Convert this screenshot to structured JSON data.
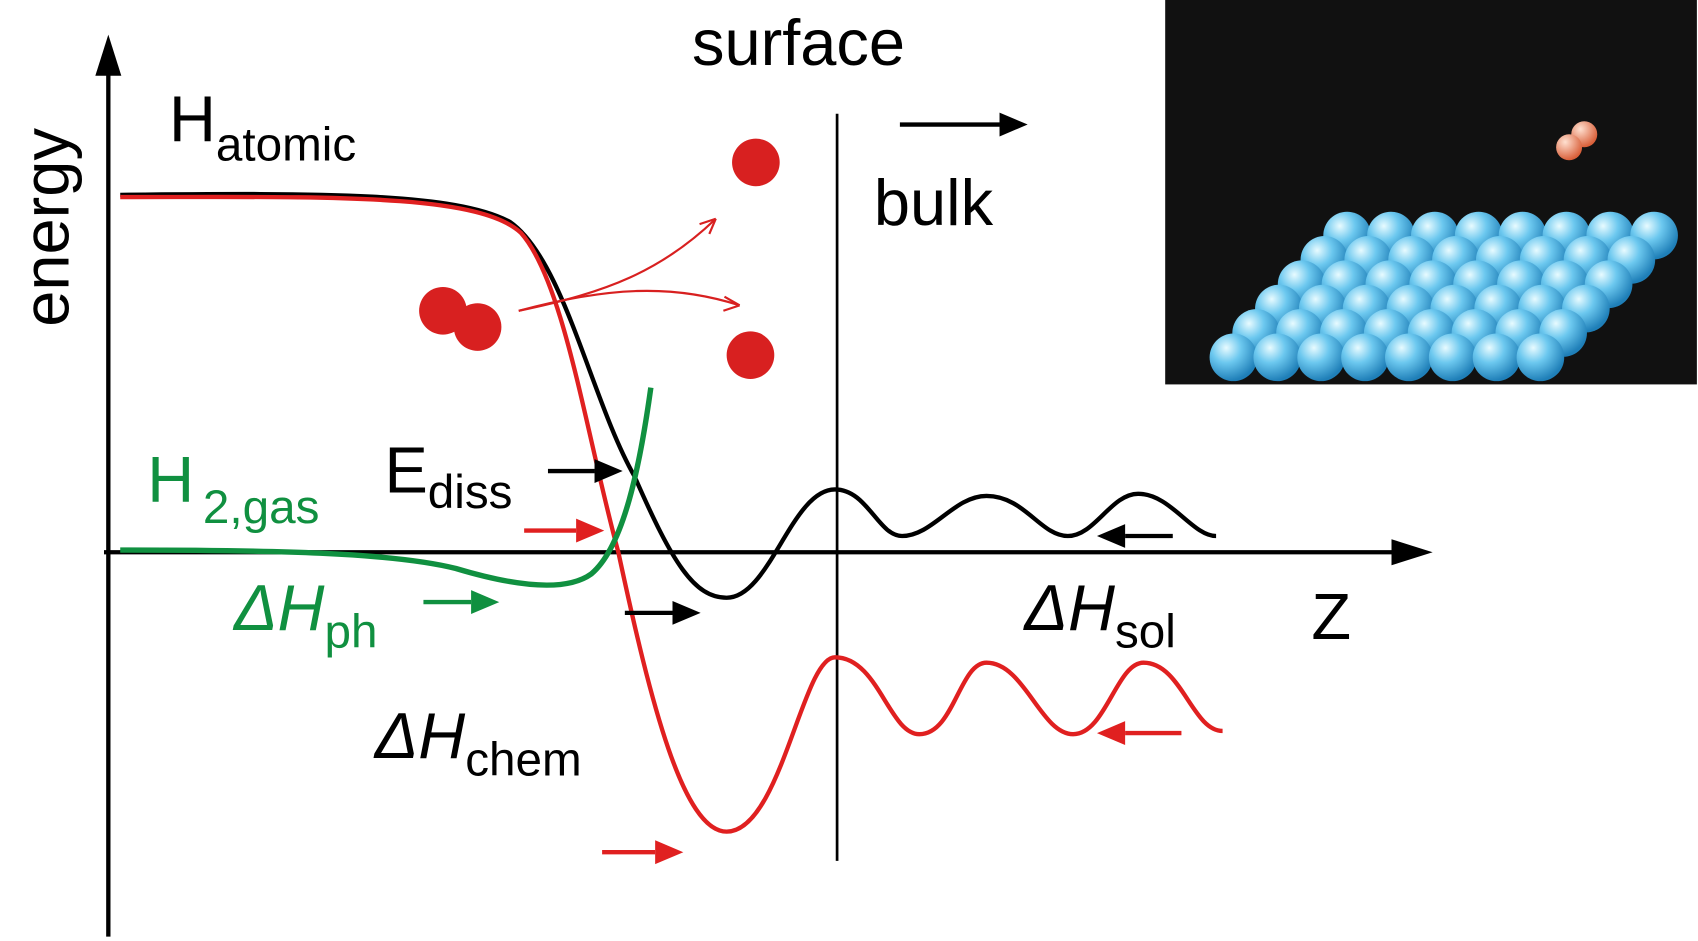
{
  "axes": {
    "y_label": "energy",
    "x_label": "Z"
  },
  "regions": {
    "surface": "surface",
    "bulk": "bulk"
  },
  "labels": {
    "h_atomic": {
      "main": "H",
      "sub": "atomic"
    },
    "h2_gas": {
      "main": "H",
      "sub": "2,gas"
    },
    "e_diss": {
      "main": "E",
      "sub": "diss"
    },
    "dh_ph": {
      "main": "ΔH",
      "sub": "ph"
    },
    "dh_sol": {
      "main": "ΔH",
      "sub": "sol"
    },
    "dh_chem": {
      "main": "ΔH",
      "sub": "chem"
    }
  }
}
